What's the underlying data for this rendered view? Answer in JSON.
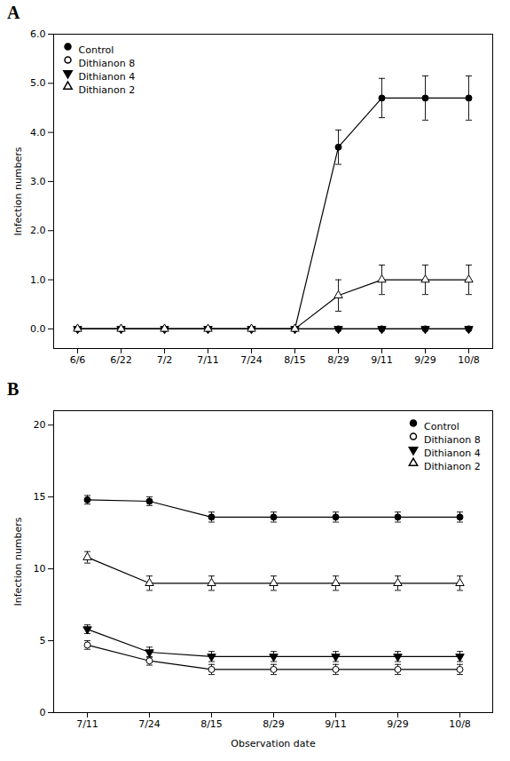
{
  "chart_data": [
    {
      "type": "line",
      "title": "A",
      "categories": [
        "6/6",
        "6/22",
        "7/2",
        "7/11",
        "7/24",
        "8/15",
        "8/29",
        "9/11",
        "9/29",
        "10/8"
      ],
      "series": [
        {
          "name": "Control",
          "color": "black",
          "marker": "circle",
          "line_style": "solid",
          "values": [
            0,
            0,
            0,
            0,
            0,
            0,
            3.7,
            4.7,
            4.7,
            4.7
          ],
          "yerr": [
            0,
            0,
            0,
            0,
            0,
            0,
            0.35,
            0.4,
            0.45,
            0.45
          ]
        },
        {
          "name": "Dithianon 8",
          "color": "black",
          "marker": "circle-open",
          "line_style": "solid",
          "values": [
            0,
            0,
            0,
            0,
            0,
            0,
            0,
            0,
            0,
            0
          ],
          "yerr": [
            0,
            0,
            0,
            0,
            0,
            0,
            0,
            0,
            0,
            0
          ]
        },
        {
          "name": "Dithianon 4",
          "color": "black",
          "marker": "triangle-down",
          "line_style": "solid",
          "values": [
            0,
            0,
            0,
            0,
            0,
            0,
            0,
            0,
            0,
            0
          ],
          "yerr": [
            0,
            0,
            0,
            0,
            0,
            0,
            0,
            0,
            0,
            0
          ]
        },
        {
          "name": "Dithianon 2",
          "color": "black",
          "marker": "triangle-up-open",
          "line_style": "solid",
          "values": [
            0,
            0,
            0,
            0,
            0,
            0,
            0.68,
            1.0,
            1.0,
            1.0
          ],
          "yerr": [
            0,
            0,
            0,
            0,
            0,
            0,
            0.32,
            0.3,
            0.3,
            0.3
          ]
        }
      ],
      "ylim": [
        -0.4,
        6
      ],
      "yticks": [
        0,
        1,
        2,
        3,
        4,
        5,
        6
      ],
      "ylabel": "Infection numbers",
      "legend": "upper left"
    },
    {
      "type": "line",
      "title": "B",
      "categories": [
        "7/11",
        "7/24",
        "8/15",
        "8/29",
        "9/11",
        "9/29",
        "10/8"
      ],
      "series": [
        {
          "name": "Control",
          "color": "black",
          "marker": "circle",
          "line_style": "solid",
          "values": [
            14.8,
            14.7,
            13.6,
            13.6,
            13.6,
            13.6,
            13.6
          ],
          "yerr": [
            0.3,
            0.3,
            0.35,
            0.35,
            0.35,
            0.35,
            0.35
          ]
        },
        {
          "name": "Dithianon 8",
          "color": "black",
          "marker": "circle-open",
          "line_style": "solid",
          "values": [
            4.7,
            3.6,
            3.0,
            3.0,
            3.0,
            3.0,
            3.0
          ],
          "yerr": [
            0.3,
            0.3,
            0.35,
            0.35,
            0.35,
            0.35,
            0.35
          ]
        },
        {
          "name": "Dithianon 4",
          "color": "black",
          "marker": "triangle-down",
          "line_style": "solid",
          "values": [
            5.8,
            4.2,
            3.9,
            3.9,
            3.9,
            3.9,
            3.9
          ],
          "yerr": [
            0.3,
            0.35,
            0.35,
            0.35,
            0.35,
            0.35,
            0.35
          ]
        },
        {
          "name": "Dithianon 2",
          "color": "black",
          "marker": "triangle-up-open",
          "line_style": "solid",
          "values": [
            10.8,
            9.0,
            9.0,
            9.0,
            9.0,
            9.0,
            9.0
          ],
          "yerr": [
            0.4,
            0.5,
            0.5,
            0.5,
            0.5,
            0.5,
            0.5
          ]
        }
      ],
      "ylim": [
        0,
        21
      ],
      "yticks": [
        0,
        5,
        10,
        15,
        20
      ],
      "ylabel": "Infection numbers",
      "xlabel": "Observation date",
      "legend": "upper right"
    }
  ]
}
